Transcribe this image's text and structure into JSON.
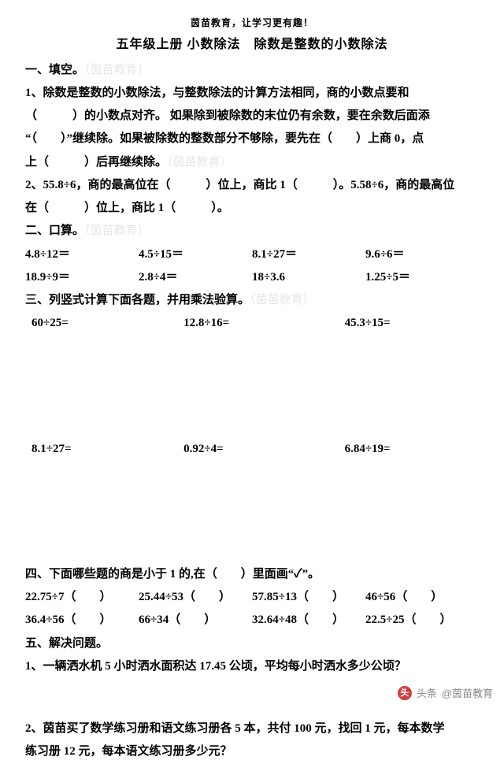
{
  "header_small": "茵苗教育，让学习更有趣！",
  "title": "五年级上册  小数除法　除数是整数的小数除法",
  "wm": "（茵苗教育）",
  "s1": {
    "h": "一、填空。",
    "p1_a": "1、除数是整数的小数除法，与整数除法的计算方法相同，商的小数点要和",
    "p1_b": "（　　　）的小数点对齐。  如果除到被除数的末位仍有余数，要在余数后面添",
    "p1_c": "“（　　）”继续除。如果被除数的整数部分不够除，要先在（　　）上商 0，点",
    "p1_d": "上（　　　）后再继续除。",
    "p2_a": "2、55.8÷6，商的最高位在（　　　）位上，商比 1（　　　）。5.58÷6，商的最高位",
    "p2_b": "在（　　　）位上，商比 1（　　　）。"
  },
  "s2": {
    "h": "二、口算。",
    "r1": [
      "4.8÷12＝",
      "4.5÷15＝",
      "8.1÷27＝",
      "9.6÷6＝"
    ],
    "r2": [
      "18.9÷9＝",
      "2.8÷4＝",
      "18÷3.6",
      "1.25÷5＝"
    ]
  },
  "s3": {
    "h": "三、列竖式计算下面各题，并用乘法验算。",
    "r1": [
      "60÷25=",
      "12.8÷16=",
      "45.3÷15="
    ],
    "r2": [
      "8.1÷27=",
      "0.92÷4=",
      "6.84÷19="
    ]
  },
  "s4": {
    "h": "四、下面哪些题的商是小于 1 的,在（　　）里面画“✓”。",
    "r1": [
      "22.75÷7（　　）",
      "25.44÷53（　　）",
      "57.85÷13（　　）",
      "46÷56（　　）"
    ],
    "r2": [
      "36.4÷56（　　）",
      "66÷34（　　）",
      "32.64÷48（　　）",
      "22.5÷25（　　）"
    ]
  },
  "s5": {
    "h": "五、解决问题。",
    "q1": "1、一辆洒水机 5 小时洒水面积达 17.45 公顷，平均每小时洒水多少公顷？",
    "q2a": "2、茵苗买了数学练习册和语文练习册各 5 本，共付 100 元，找回 1 元，每本数学",
    "q2b": "练习册 12 元，每本语文练习册多少元？"
  },
  "footer": {
    "label": "头条",
    "author": "@茵苗教育"
  }
}
